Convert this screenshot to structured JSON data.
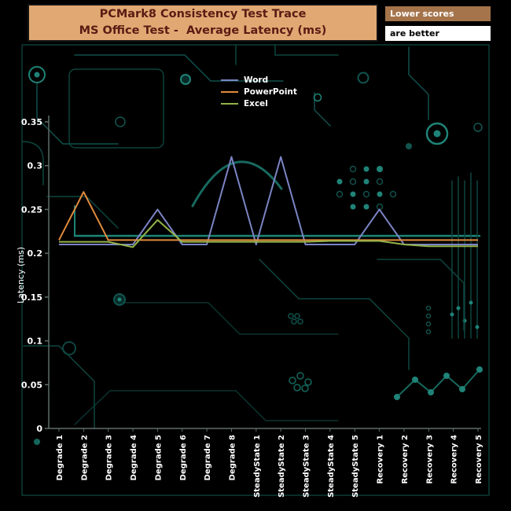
{
  "title": {
    "line1": "PCMark8 Consistency Test Trace",
    "line2": "MS Office Test -  Average Latency (ms)"
  },
  "note": {
    "line1": "Lower scores",
    "line2": "are better"
  },
  "colors": {
    "axis": "#5f6e6a",
    "tick_text": "#ffffff",
    "title_bg": "#e2a873",
    "title_text": "#5a1c14",
    "note_bg": "#a5744b",
    "background": "#000000"
  },
  "chart_data": {
    "type": "line",
    "title": "PCMark8 Consistency Test Trace MS Office Test - Average Latency (ms)",
    "xlabel": "",
    "ylabel": "Latency (ms)",
    "ylim": [
      0,
      0.35
    ],
    "yticks": [
      0,
      0.05,
      0.1,
      0.15,
      0.2,
      0.25,
      0.3,
      0.35
    ],
    "grid": false,
    "legend_position": "top-center",
    "categories": [
      "Degrade 1",
      "Degrade 2",
      "Degrade 3",
      "Degrade 4",
      "Degrade 5",
      "Degrade 6",
      "Degrade 7",
      "Degrade 8",
      "SteadyState 1",
      "SteadyState 2",
      "SteadyState 3",
      "SteadyState 4",
      "SteadyState 5",
      "Recovery 1",
      "Recovery 2",
      "Recovery 3",
      "Recovery 4",
      "Recovery 5"
    ],
    "series": [
      {
        "name": "Word",
        "color": "#7b84c4",
        "values": [
          0.21,
          0.21,
          0.21,
          0.21,
          0.25,
          0.21,
          0.21,
          0.31,
          0.21,
          0.31,
          0.21,
          0.21,
          0.21,
          0.25,
          0.21,
          0.21,
          0.21,
          0.21
        ]
      },
      {
        "name": "PowerPoint",
        "color": "#e08b3c",
        "values": [
          0.215,
          0.27,
          0.215,
          0.215,
          0.215,
          0.215,
          0.215,
          0.215,
          0.215,
          0.215,
          0.215,
          0.215,
          0.215,
          0.215,
          0.215,
          0.215,
          0.215,
          0.215
        ]
      },
      {
        "name": "Excel",
        "color": "#93b44a",
        "values": [
          0.213,
          0.213,
          0.213,
          0.207,
          0.238,
          0.213,
          0.213,
          0.213,
          0.213,
          0.213,
          0.213,
          0.214,
          0.214,
          0.214,
          0.21,
          0.208,
          0.208,
          0.208
        ]
      }
    ]
  }
}
